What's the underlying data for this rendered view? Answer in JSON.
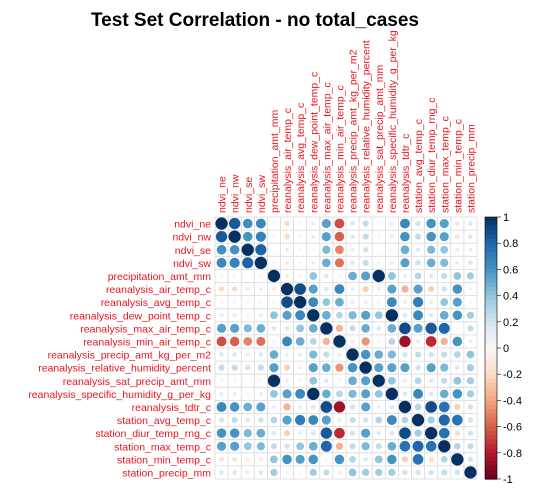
{
  "chart_data": {
    "type": "heatmap",
    "title": "Test Set Correlation - no total_cases",
    "variables": [
      "ndvi_ne",
      "ndvi_nw",
      "ndvi_se",
      "ndvi_sw",
      "precipitation_amt_mm",
      "reanalysis_air_temp_c",
      "reanalysis_avg_temp_c",
      "reanalysis_dew_point_temp_c",
      "reanalysis_max_air_temp_c",
      "reanalysis_min_air_temp_c",
      "reanalysis_precip_amt_kg_per_m2",
      "reanalysis_relative_humidity_percent",
      "reanalysis_sat_precip_amt_mm",
      "reanalysis_specific_humidity_g_per_kg",
      "reanalysis_tdtr_c",
      "station_avg_temp_c",
      "station_diur_temp_rng_c",
      "station_max_temp_c",
      "station_min_temp_c",
      "station_precip_mm"
    ],
    "matrix": [
      [
        1.0,
        0.85,
        0.62,
        0.65,
        0.05,
        -0.2,
        0.05,
        0.1,
        0.55,
        -0.65,
        0.15,
        0.25,
        0.05,
        0.1,
        0.65,
        0.2,
        0.6,
        0.55,
        -0.15,
        0.15
      ],
      [
        0.85,
        1.0,
        0.6,
        0.68,
        0.05,
        -0.2,
        0.05,
        0.1,
        0.55,
        -0.6,
        0.15,
        0.25,
        0.05,
        0.1,
        0.6,
        0.25,
        0.6,
        0.55,
        -0.15,
        0.15
      ],
      [
        0.62,
        0.6,
        1.0,
        0.82,
        0.0,
        -0.1,
        0.05,
        0.05,
        0.45,
        -0.5,
        0.1,
        0.2,
        0.0,
        0.05,
        0.5,
        0.15,
        0.45,
        0.4,
        -0.1,
        0.1
      ],
      [
        0.65,
        0.68,
        0.82,
        1.0,
        0.05,
        -0.1,
        0.05,
        0.1,
        0.5,
        -0.55,
        0.15,
        0.25,
        0.05,
        0.1,
        0.55,
        0.2,
        0.5,
        0.45,
        -0.1,
        0.15
      ],
      [
        0.05,
        0.05,
        0.0,
        0.05,
        1.0,
        -0.1,
        -0.05,
        0.4,
        0.15,
        -0.05,
        0.5,
        0.55,
        1.0,
        0.4,
        0.1,
        0.3,
        0.15,
        0.25,
        0.4,
        0.35
      ],
      [
        -0.2,
        -0.2,
        -0.1,
        -0.1,
        -0.1,
        1.0,
        0.9,
        0.55,
        0.15,
        0.65,
        0.1,
        -0.25,
        -0.1,
        0.55,
        -0.35,
        0.55,
        -0.25,
        0.2,
        0.6,
        0.05
      ],
      [
        0.05,
        0.05,
        0.05,
        0.05,
        -0.05,
        0.9,
        1.0,
        0.65,
        0.4,
        0.5,
        0.1,
        -0.1,
        -0.05,
        0.65,
        0.1,
        0.7,
        0.1,
        0.4,
        0.55,
        0.05
      ],
      [
        0.1,
        0.1,
        0.05,
        0.1,
        0.4,
        0.55,
        0.65,
        1.0,
        0.5,
        0.3,
        0.45,
        0.55,
        0.4,
        1.0,
        0.15,
        0.65,
        0.15,
        0.5,
        0.6,
        0.35
      ],
      [
        0.55,
        0.55,
        0.45,
        0.5,
        0.15,
        0.15,
        0.4,
        0.5,
        1.0,
        -0.35,
        0.25,
        0.5,
        0.15,
        0.5,
        0.9,
        0.55,
        0.85,
        0.8,
        0.05,
        0.25
      ],
      [
        -0.65,
        -0.6,
        -0.5,
        -0.55,
        -0.05,
        0.65,
        0.5,
        0.3,
        -0.35,
        1.0,
        -0.1,
        -0.45,
        -0.05,
        0.3,
        -0.85,
        0.1,
        -0.75,
        -0.35,
        0.6,
        -0.1
      ],
      [
        0.15,
        0.15,
        0.1,
        0.15,
        0.5,
        0.1,
        0.1,
        0.45,
        0.25,
        -0.1,
        1.0,
        0.6,
        0.5,
        0.45,
        0.2,
        0.25,
        0.2,
        0.25,
        0.3,
        0.4
      ],
      [
        0.25,
        0.25,
        0.2,
        0.25,
        0.55,
        -0.25,
        -0.1,
        0.55,
        0.5,
        -0.45,
        0.6,
        1.0,
        0.55,
        0.55,
        0.55,
        0.2,
        0.55,
        0.45,
        0.15,
        0.35
      ],
      [
        0.05,
        0.05,
        0.0,
        0.05,
        1.0,
        -0.1,
        -0.05,
        0.4,
        0.15,
        -0.05,
        0.5,
        0.55,
        1.0,
        0.4,
        0.1,
        0.3,
        0.15,
        0.25,
        0.4,
        0.35
      ],
      [
        0.1,
        0.1,
        0.05,
        0.1,
        0.4,
        0.55,
        0.65,
        1.0,
        0.5,
        0.3,
        0.45,
        0.55,
        0.4,
        1.0,
        0.15,
        0.65,
        0.15,
        0.5,
        0.6,
        0.35
      ],
      [
        0.65,
        0.6,
        0.5,
        0.55,
        0.1,
        -0.35,
        0.1,
        0.15,
        0.9,
        -0.85,
        0.2,
        0.55,
        0.1,
        0.15,
        1.0,
        0.3,
        0.9,
        0.75,
        -0.25,
        0.2
      ],
      [
        0.2,
        0.25,
        0.15,
        0.2,
        0.3,
        0.55,
        0.7,
        0.65,
        0.55,
        0.1,
        0.25,
        0.2,
        0.3,
        0.65,
        0.3,
        1.0,
        0.35,
        0.8,
        0.75,
        0.2
      ],
      [
        0.6,
        0.6,
        0.45,
        0.5,
        0.15,
        -0.25,
        0.1,
        0.15,
        0.85,
        -0.75,
        0.2,
        0.55,
        0.15,
        0.15,
        0.9,
        0.35,
        1.0,
        0.75,
        -0.2,
        0.2
      ],
      [
        0.55,
        0.55,
        0.4,
        0.45,
        0.25,
        0.2,
        0.4,
        0.5,
        0.8,
        -0.35,
        0.25,
        0.45,
        0.25,
        0.5,
        0.75,
        0.8,
        0.75,
        1.0,
        0.3,
        0.25
      ],
      [
        -0.15,
        -0.15,
        -0.1,
        -0.1,
        0.4,
        0.6,
        0.55,
        0.6,
        0.05,
        0.6,
        0.3,
        0.15,
        0.4,
        0.6,
        -0.25,
        0.75,
        -0.2,
        0.3,
        1.0,
        0.2
      ],
      [
        0.15,
        0.15,
        0.1,
        0.15,
        0.35,
        0.05,
        0.05,
        0.35,
        0.25,
        -0.1,
        0.4,
        0.35,
        0.35,
        0.35,
        0.2,
        0.2,
        0.2,
        0.25,
        0.2,
        1.0
      ]
    ],
    "colorbar": {
      "range": [
        -1,
        1
      ],
      "ticks": [
        "-1",
        "-0.8",
        "-0.6",
        "-0.4",
        "-0.2",
        "0",
        "0.2",
        "0.4",
        "0.6",
        "0.8",
        "1"
      ]
    },
    "colors": {
      "negative": "#67001f",
      "neutral": "#f7f7f7",
      "positive": "#053061",
      "label": "#e8141c",
      "grid": "#d9d9d9"
    },
    "legend_position": "right"
  }
}
